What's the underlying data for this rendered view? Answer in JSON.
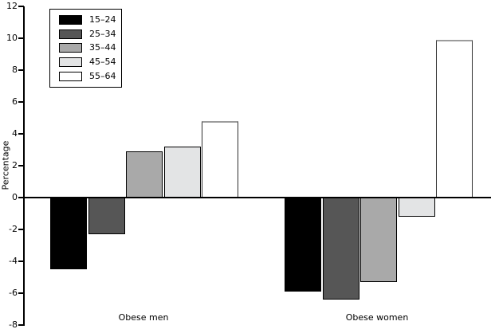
{
  "chart_data": {
    "type": "bar",
    "title": "",
    "xlabel": "",
    "ylabel": "Percentage",
    "categories": [
      "Obese men",
      "Obese women"
    ],
    "series": [
      {
        "name": "15–24",
        "color": "#000000",
        "values": [
          -4.5,
          -5.9
        ]
      },
      {
        "name": "25–34",
        "color": "#565656",
        "values": [
          -2.3,
          -6.4
        ]
      },
      {
        "name": "35–44",
        "color": "#a9a9a9",
        "values": [
          2.9,
          -5.3
        ]
      },
      {
        "name": "45–54",
        "color": "#e3e4e5",
        "values": [
          3.2,
          -1.2
        ]
      },
      {
        "name": "55–64",
        "color": "#ffffff",
        "values": [
          4.8,
          9.9
        ]
      }
    ],
    "ylim": [
      -8,
      12
    ],
    "yticks": [
      12,
      10,
      8,
      6,
      4,
      2,
      0,
      -2,
      -4,
      -6,
      -8
    ],
    "grid": false,
    "legend_position": "top-left",
    "bar_border_color": "#000000",
    "background_color": "#ffffff"
  }
}
